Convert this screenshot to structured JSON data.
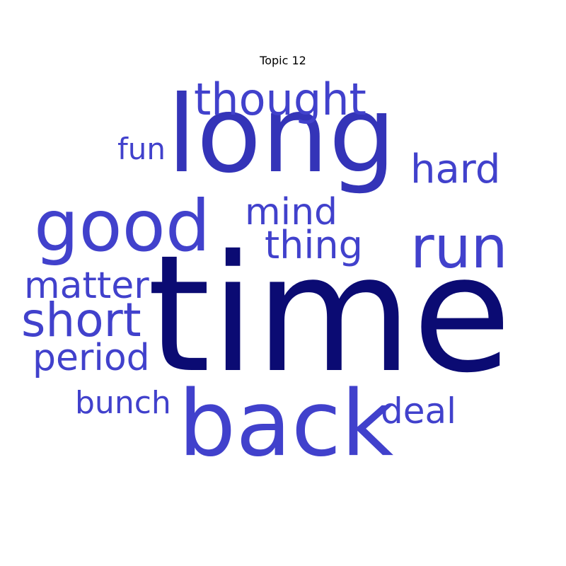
{
  "title": "Topic 12",
  "colors": {
    "dark": "#0b0b73",
    "mid": "#3434b8",
    "light": "#4141cc"
  },
  "words": [
    {
      "id": "time",
      "text": "time",
      "color": "dark"
    },
    {
      "id": "long",
      "text": "long",
      "color": "mid"
    },
    {
      "id": "back",
      "text": "back",
      "color": "light"
    },
    {
      "id": "good",
      "text": "good",
      "color": "light"
    },
    {
      "id": "run",
      "text": "run",
      "color": "light"
    },
    {
      "id": "thought",
      "text": "thought",
      "color": "light"
    },
    {
      "id": "short",
      "text": "short",
      "color": "light"
    },
    {
      "id": "hard",
      "text": "hard",
      "color": "light"
    },
    {
      "id": "mind",
      "text": "mind",
      "color": "light"
    },
    {
      "id": "thing",
      "text": "thing",
      "color": "light"
    },
    {
      "id": "matter",
      "text": "matter",
      "color": "light"
    },
    {
      "id": "period",
      "text": "period",
      "color": "light"
    },
    {
      "id": "deal",
      "text": "deal",
      "color": "light"
    },
    {
      "id": "bunch",
      "text": "bunch",
      "color": "light"
    },
    {
      "id": "fun",
      "text": "fun",
      "color": "light"
    }
  ]
}
